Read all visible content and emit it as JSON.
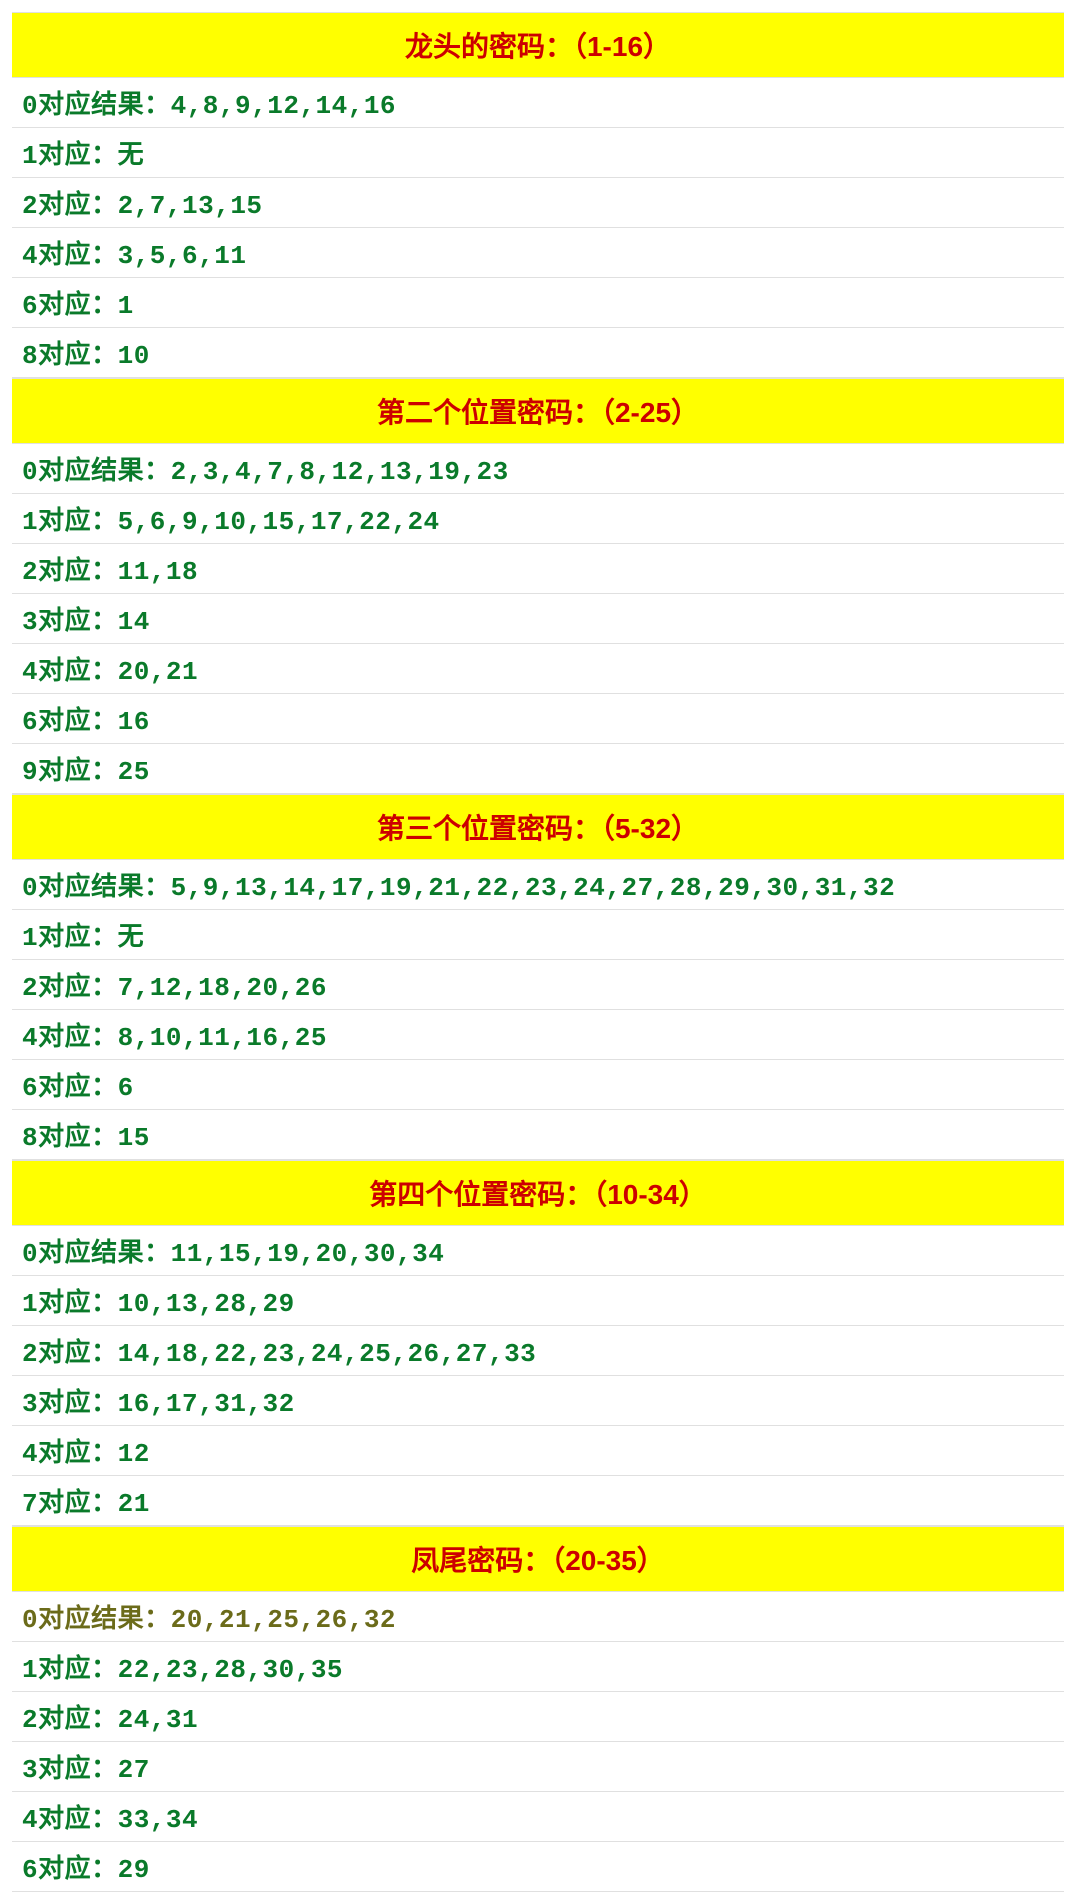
{
  "sections": [
    {
      "title": "龙头的密码：（1-16）",
      "rows": [
        {
          "text": "0对应结果：4,8,9,12,14,16",
          "color": "green"
        },
        {
          "text": "1对应：无",
          "color": "green"
        },
        {
          "text": "2对应：2,7,13,15",
          "color": "green"
        },
        {
          "text": "4对应：3,5,6,11",
          "color": "green"
        },
        {
          "text": "6对应：1",
          "color": "green"
        },
        {
          "text": "8对应：10",
          "color": "green"
        }
      ]
    },
    {
      "title": "第二个位置密码：（2-25）",
      "rows": [
        {
          "text": "0对应结果：2,3,4,7,8,12,13,19,23",
          "color": "green"
        },
        {
          "text": "1对应：5,6,9,10,15,17,22,24",
          "color": "green"
        },
        {
          "text": "2对应：11,18",
          "color": "green"
        },
        {
          "text": "3对应：14",
          "color": "green"
        },
        {
          "text": "4对应：20,21",
          "color": "green"
        },
        {
          "text": "6对应：16",
          "color": "green"
        },
        {
          "text": "9对应：25",
          "color": "green"
        }
      ]
    },
    {
      "title": "第三个位置密码：（5-32）",
      "rows": [
        {
          "text": "0对应结果：5,9,13,14,17,19,21,22,23,24,27,28,29,30,31,32",
          "color": "green"
        },
        {
          "text": "1对应：无",
          "color": "green"
        },
        {
          "text": "2对应：7,12,18,20,26",
          "color": "green"
        },
        {
          "text": "4对应：8,10,11,16,25",
          "color": "green"
        },
        {
          "text": "6对应：6",
          "color": "green"
        },
        {
          "text": "8对应：15",
          "color": "green"
        }
      ]
    },
    {
      "title": "第四个位置密码：（10-34）",
      "rows": [
        {
          "text": "0对应结果：11,15,19,20,30,34",
          "color": "green"
        },
        {
          "text": "1对应：10,13,28,29",
          "color": "green"
        },
        {
          "text": "2对应：14,18,22,23,24,25,26,27,33",
          "color": "green"
        },
        {
          "text": "3对应：16,17,31,32",
          "color": "green"
        },
        {
          "text": "4对应：12",
          "color": "green"
        },
        {
          "text": "7对应：21",
          "color": "green"
        }
      ]
    },
    {
      "title": "凤尾密码：（20-35）",
      "rows": [
        {
          "text": "0对应结果：20,21,25,26,32",
          "color": "olive"
        },
        {
          "text": "1对应：22,23,28,30,35",
          "color": "green"
        },
        {
          "text": "2对应：24,31",
          "color": "green"
        },
        {
          "text": "3对应：27",
          "color": "green"
        },
        {
          "text": "4对应：33,34",
          "color": "green"
        },
        {
          "text": "6对应：29",
          "color": "green"
        }
      ]
    }
  ],
  "colors": {
    "header_bg": "#ffff00",
    "header_text": "#cc0000",
    "row_green": "#0a7a2a",
    "row_olive": "#6b6b1a",
    "border": "#e0e0e0",
    "background": "#ffffff"
  },
  "typography": {
    "header_fontsize": 28,
    "row_fontsize": 26,
    "font_weight": "bold"
  }
}
